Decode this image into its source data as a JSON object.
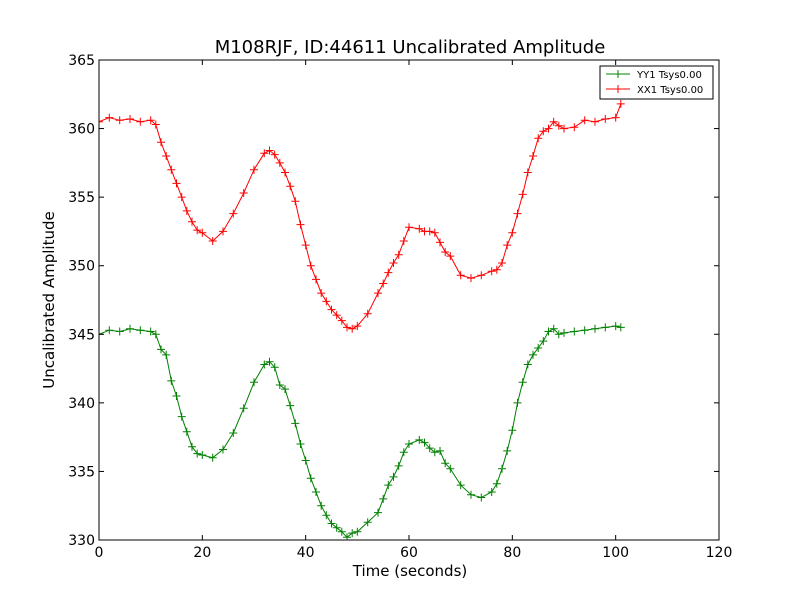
{
  "chart_data": {
    "type": "line",
    "title": "M108RJF, ID:44611 Uncalibrated Amplitude",
    "xlabel": "Time (seconds)",
    "ylabel": "Uncalibrated Amplitude",
    "xlim": [
      0,
      120
    ],
    "ylim": [
      330,
      365
    ],
    "xticks": [
      0,
      20,
      40,
      60,
      80,
      100,
      120
    ],
    "yticks": [
      330,
      335,
      340,
      345,
      350,
      355,
      360,
      365
    ],
    "grid": false,
    "legend_position": "top-right",
    "marker": "+",
    "series": [
      {
        "name": "YY1 Tsys0.00",
        "color": "#008000",
        "x": [
          0,
          2,
          4,
          6,
          8,
          10,
          11,
          12,
          13,
          14,
          15,
          16,
          17,
          18,
          19,
          20,
          22,
          24,
          26,
          28,
          30,
          32,
          33,
          34,
          35,
          36,
          37,
          38,
          39,
          40,
          41,
          42,
          43,
          44,
          45,
          46,
          47,
          48,
          49,
          50,
          52,
          54,
          55,
          56,
          57,
          58,
          59,
          60,
          62,
          63,
          64,
          65,
          66,
          67,
          68,
          70,
          72,
          74,
          76,
          77,
          78,
          79,
          80,
          81,
          82,
          83,
          84,
          85,
          86,
          87,
          88,
          89,
          90,
          92,
          94,
          96,
          98,
          100,
          101
        ],
        "values": [
          345.0,
          345.3,
          345.2,
          345.4,
          345.3,
          345.2,
          345.0,
          343.9,
          343.5,
          341.6,
          340.5,
          339.0,
          337.9,
          336.8,
          336.3,
          336.2,
          336.0,
          336.6,
          337.8,
          339.6,
          341.5,
          342.8,
          343.0,
          342.6,
          341.3,
          341.0,
          339.8,
          338.5,
          337.0,
          335.8,
          334.5,
          333.5,
          332.5,
          331.8,
          331.2,
          330.9,
          330.6,
          330.2,
          330.5,
          330.6,
          331.3,
          332.0,
          333.0,
          334.0,
          334.6,
          335.4,
          336.4,
          337.0,
          337.3,
          337.1,
          336.7,
          336.4,
          336.5,
          335.6,
          335.2,
          334.0,
          333.3,
          333.1,
          333.5,
          334.1,
          335.2,
          336.5,
          338.0,
          340.0,
          341.5,
          342.8,
          343.5,
          344.0,
          344.5,
          345.2,
          345.4,
          345.0,
          345.1,
          345.2,
          345.3,
          345.4,
          345.5,
          345.6,
          345.5
        ]
      },
      {
        "name": "XX1 Tsys0.00",
        "color": "#ff0000",
        "x": [
          0,
          2,
          4,
          6,
          8,
          10,
          11,
          12,
          13,
          14,
          15,
          16,
          17,
          18,
          19,
          20,
          22,
          24,
          26,
          28,
          30,
          32,
          33,
          34,
          35,
          36,
          37,
          38,
          39,
          40,
          41,
          42,
          43,
          44,
          45,
          46,
          47,
          48,
          49,
          50,
          52,
          54,
          55,
          56,
          57,
          58,
          59,
          60,
          62,
          63,
          64,
          65,
          66,
          67,
          68,
          70,
          72,
          74,
          76,
          77,
          78,
          79,
          80,
          81,
          82,
          83,
          84,
          85,
          86,
          87,
          88,
          89,
          90,
          92,
          94,
          96,
          98,
          100,
          101
        ],
        "values": [
          360.5,
          360.8,
          360.6,
          360.7,
          360.5,
          360.6,
          360.3,
          359.0,
          358.0,
          357.0,
          356.0,
          355.0,
          354.0,
          353.2,
          352.6,
          352.4,
          351.8,
          352.5,
          353.8,
          355.3,
          357.0,
          358.2,
          358.4,
          358.1,
          357.5,
          356.8,
          355.8,
          354.7,
          353.0,
          351.5,
          350.0,
          349.0,
          348.0,
          347.4,
          346.8,
          346.4,
          346.0,
          345.5,
          345.4,
          345.6,
          346.5,
          348.0,
          348.7,
          349.5,
          350.2,
          350.8,
          351.8,
          352.8,
          352.7,
          352.5,
          352.5,
          352.4,
          351.7,
          351.0,
          350.7,
          349.3,
          349.1,
          349.3,
          349.6,
          349.7,
          350.2,
          351.5,
          352.4,
          353.8,
          355.2,
          356.8,
          358.0,
          359.3,
          359.8,
          360.0,
          360.5,
          360.2,
          360.0,
          360.1,
          360.6,
          360.5,
          360.7,
          360.8,
          361.8
        ]
      }
    ]
  }
}
